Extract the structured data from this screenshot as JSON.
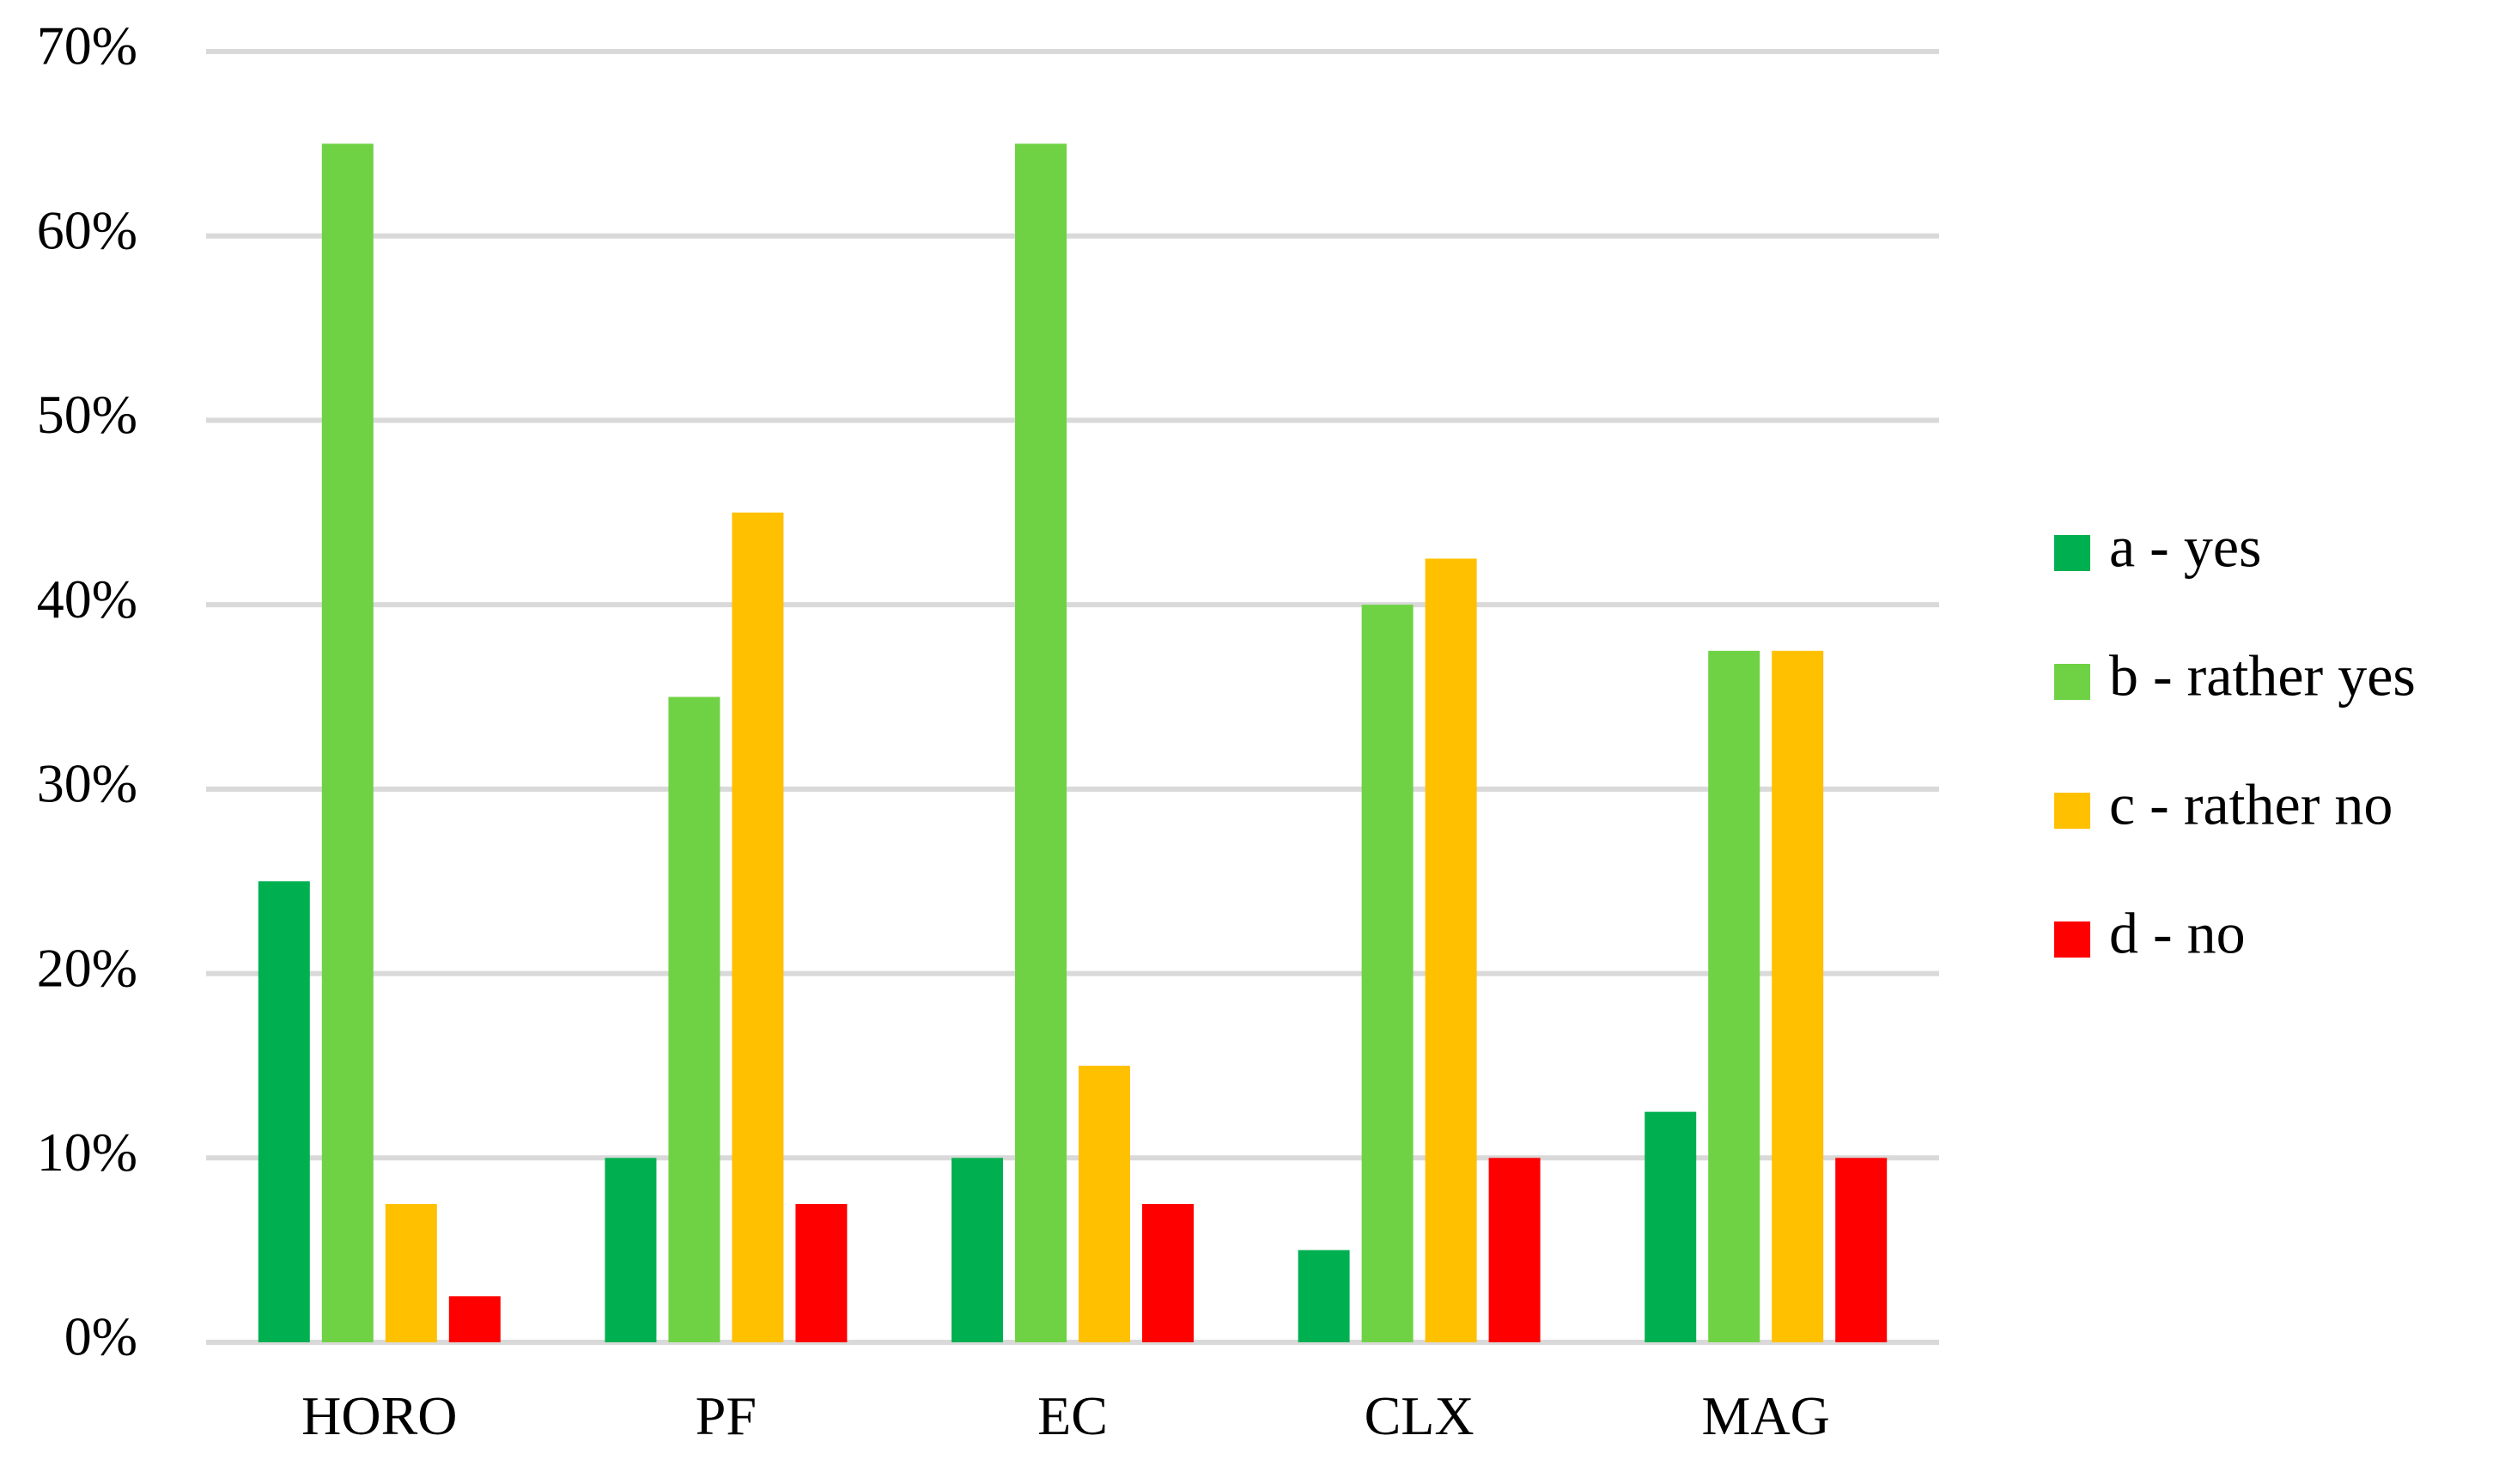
{
  "chart_data": {
    "type": "bar",
    "title": "",
    "xlabel": "",
    "ylabel": "",
    "categories": [
      "HORO",
      "PF",
      "EC",
      "CLX",
      "MAG"
    ],
    "series": [
      {
        "name": "a - yes",
        "color": "#00b050",
        "values": [
          25,
          10,
          10,
          5,
          12.5
        ]
      },
      {
        "name": "b - rather yes",
        "color": "#6fd244",
        "values": [
          65,
          35,
          65,
          40,
          37.5
        ]
      },
      {
        "name": "c - rather no",
        "color": "#ffc000",
        "values": [
          7.5,
          45,
          15,
          42.5,
          37.5
        ]
      },
      {
        "name": "d - no",
        "color": "#ff0000",
        "values": [
          2.5,
          7.5,
          7.5,
          10,
          10
        ]
      }
    ],
    "ylim": [
      0,
      70
    ],
    "yticks": [
      "0%",
      "10%",
      "20%",
      "30%",
      "40%",
      "50%",
      "60%",
      "70%"
    ],
    "grid": true,
    "legend_position": "right"
  }
}
